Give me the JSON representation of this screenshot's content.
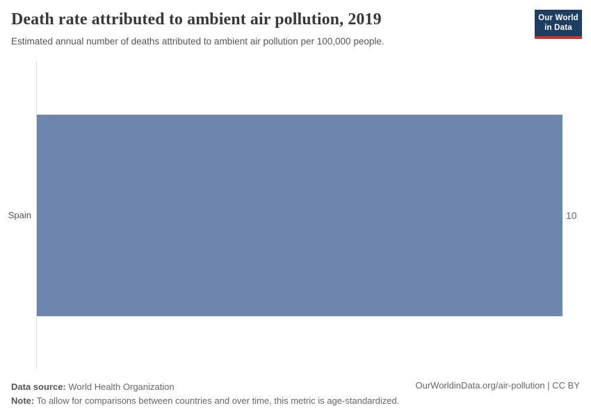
{
  "header": {
    "title": "Death rate attributed to ambient air pollution, 2019",
    "subtitle": "Estimated annual number of deaths attributed to ambient air pollution per 100,000 people.",
    "logo": {
      "line1": "Our World",
      "line2": "in Data",
      "background_color": "#1d3d63",
      "accent_color": "#c8342c"
    }
  },
  "chart_data": {
    "type": "bar",
    "orientation": "horizontal",
    "title": "Death rate attributed to ambient air pollution, 2019",
    "categories": [
      "Spain"
    ],
    "values": [
      10
    ],
    "value_labels": [
      "10"
    ],
    "xlabel": "",
    "ylabel": "",
    "xlim": [
      0,
      10
    ],
    "grid": false,
    "legend": "none",
    "bar_color": "#6e86ad"
  },
  "footer": {
    "datasource_label": "Data source:",
    "datasource_value": "World Health Organization",
    "note_label": "Note:",
    "note_value": "To allow for comparisons between countries and over time, this metric is age-standardized.",
    "link": "OurWorldinData.org/air-pollution | CC BY"
  }
}
